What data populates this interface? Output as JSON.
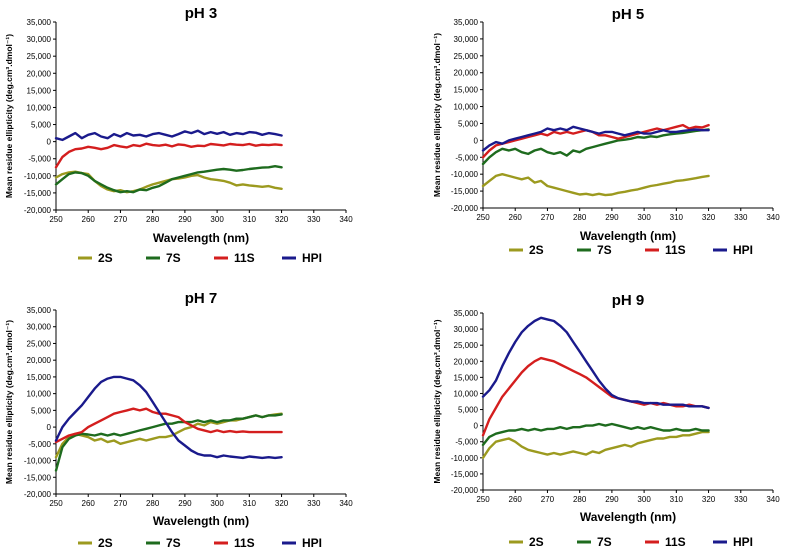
{
  "chart_data": [
    {
      "type": "line",
      "title": "pH 3",
      "xlabel": "Wavelength (nm)",
      "ylabel": "Mean residue ellipticity (deg.cm³.dmol⁻¹)",
      "xlim": [
        250,
        340
      ],
      "ylim": [
        -20000,
        35000
      ],
      "xticks": [
        "250",
        "260",
        "270",
        "280",
        "290",
        "300",
        "310",
        "320",
        "330",
        "340"
      ],
      "yticks": [
        "-20,000",
        "-15,000",
        "-10,000",
        "-5,000",
        "0",
        "5,000",
        "10,000",
        "15,000",
        "20,000",
        "25,000",
        "30,000",
        "35,000"
      ],
      "x": [
        250,
        252,
        254,
        256,
        258,
        260,
        262,
        264,
        266,
        268,
        270,
        272,
        274,
        276,
        278,
        280,
        282,
        284,
        286,
        288,
        290,
        292,
        294,
        296,
        298,
        300,
        302,
        304,
        306,
        308,
        310,
        312,
        314,
        316,
        318,
        320
      ],
      "series": [
        {
          "name": "2S",
          "color": "#9c9a1f",
          "values": [
            -10500,
            -9500,
            -9000,
            -8800,
            -9200,
            -9500,
            -11500,
            -13000,
            -14000,
            -14500,
            -14200,
            -14800,
            -14500,
            -14000,
            -13200,
            -12500,
            -12000,
            -11500,
            -11000,
            -10800,
            -10500,
            -10000,
            -9800,
            -10500,
            -11000,
            -11200,
            -11500,
            -12000,
            -12800,
            -12500,
            -12800,
            -13000,
            -13200,
            -13000,
            -13500,
            -13800
          ]
        },
        {
          "name": "7S",
          "color": "#1e6b1e",
          "values": [
            -12500,
            -11000,
            -9500,
            -9000,
            -9200,
            -10000,
            -11500,
            -12500,
            -13500,
            -14200,
            -14800,
            -14500,
            -14800,
            -14000,
            -14200,
            -13500,
            -13000,
            -12000,
            -11000,
            -10500,
            -10000,
            -9500,
            -9000,
            -8800,
            -8500,
            -8200,
            -8000,
            -8200,
            -8500,
            -8300,
            -8000,
            -7800,
            -7600,
            -7500,
            -7200,
            -7500
          ]
        },
        {
          "name": "11S",
          "color": "#d41e1e",
          "values": [
            -7500,
            -4500,
            -3000,
            -2200,
            -2000,
            -1500,
            -1800,
            -2200,
            -1800,
            -1000,
            -1400,
            -1700,
            -1000,
            -1300,
            -600,
            -1000,
            -1200,
            -900,
            -1400,
            -800,
            -1000,
            -1500,
            -1200,
            -1300,
            -700,
            -900,
            -1100,
            -700,
            -900,
            -1000,
            -700,
            -1200,
            -900,
            -1000,
            -800,
            -1000
          ]
        },
        {
          "name": "HPI",
          "color": "#1a1a8c",
          "values": [
            1000,
            500,
            1500,
            2500,
            1000,
            2000,
            2500,
            1500,
            1000,
            2200,
            1500,
            2500,
            1800,
            2000,
            1500,
            2200,
            2500,
            2000,
            1500,
            2200,
            3000,
            2500,
            3200,
            2200,
            2800,
            2300,
            2800,
            2000,
            2500,
            2200,
            2800,
            2600,
            2000,
            2500,
            2200,
            1800
          ]
        }
      ],
      "legend": [
        "2S",
        "7S",
        "11S",
        "HPI"
      ]
    },
    {
      "type": "line",
      "title": "pH 5",
      "xlabel": "Wavelength (nm)",
      "ylabel": "Mean residue ellipticity (deg.cm³.dmol⁻¹)",
      "xlim": [
        250,
        340
      ],
      "ylim": [
        -20000,
        35000
      ],
      "xticks": [
        "250",
        "260",
        "270",
        "280",
        "290",
        "300",
        "310",
        "320",
        "330",
        "340"
      ],
      "yticks": [
        "-20,000",
        "-15,000",
        "-10,000",
        "-5,000",
        "0",
        "5,000",
        "10,000",
        "15,000",
        "20,000",
        "25,000",
        "30,000",
        "35,000"
      ],
      "x": [
        250,
        252,
        254,
        256,
        258,
        260,
        262,
        264,
        266,
        268,
        270,
        272,
        274,
        276,
        278,
        280,
        282,
        284,
        286,
        288,
        290,
        292,
        294,
        296,
        298,
        300,
        302,
        304,
        306,
        308,
        310,
        312,
        314,
        316,
        318,
        320
      ],
      "series": [
        {
          "name": "2S",
          "color": "#9c9a1f",
          "values": [
            -13500,
            -12000,
            -10500,
            -10000,
            -10500,
            -11000,
            -11500,
            -11000,
            -12500,
            -12000,
            -13500,
            -14000,
            -14500,
            -15000,
            -15500,
            -16000,
            -15800,
            -16200,
            -15800,
            -16200,
            -16000,
            -15500,
            -15200,
            -14800,
            -14500,
            -14000,
            -13500,
            -13200,
            -12800,
            -12500,
            -12000,
            -11800,
            -11500,
            -11200,
            -10800,
            -10500
          ]
        },
        {
          "name": "7S",
          "color": "#1e6b1e",
          "values": [
            -7000,
            -5000,
            -3500,
            -2500,
            -3000,
            -2500,
            -3500,
            -4000,
            -3000,
            -2500,
            -3500,
            -4000,
            -3500,
            -4500,
            -3000,
            -3500,
            -2500,
            -2000,
            -1500,
            -1000,
            -500,
            0,
            200,
            500,
            1000,
            800,
            1200,
            1000,
            1500,
            1800,
            2000,
            2200,
            2500,
            2800,
            3000,
            3200
          ]
        },
        {
          "name": "11S",
          "color": "#d41e1e",
          "values": [
            -5000,
            -3000,
            -1500,
            -1000,
            -500,
            0,
            500,
            1000,
            1500,
            2000,
            1500,
            2500,
            2000,
            2500,
            2000,
            2500,
            3000,
            2500,
            1500,
            1500,
            1000,
            500,
            1000,
            1500,
            2000,
            2500,
            3000,
            3500,
            3000,
            3500,
            4000,
            4500,
            3500,
            4000,
            3800,
            4500
          ]
        },
        {
          "name": "HPI",
          "color": "#1a1a8c",
          "values": [
            -3000,
            -1500,
            -500,
            -1000,
            0,
            500,
            1000,
            1500,
            2000,
            2500,
            3500,
            3000,
            3500,
            3000,
            4000,
            3500,
            3000,
            2500,
            2000,
            2500,
            2500,
            2000,
            1500,
            2000,
            2500,
            2000,
            2000,
            2500,
            3000,
            2500,
            2500,
            2800,
            3000,
            3200,
            3000,
            3000
          ]
        }
      ],
      "legend": [
        "2S",
        "7S",
        "11S",
        "HPI"
      ]
    },
    {
      "type": "line",
      "title": "pH 7",
      "xlabel": "Wavelength (nm)",
      "ylabel": "Mean residue ellipticity (deg.cm³.dmol⁻¹)",
      "xlim": [
        250,
        340
      ],
      "ylim": [
        -20000,
        35000
      ],
      "xticks": [
        "250",
        "260",
        "270",
        "280",
        "290",
        "300",
        "310",
        "320",
        "330",
        "340"
      ],
      "yticks": [
        "-20,000",
        "-15,000",
        "-10,000",
        "-5,000",
        "0",
        "5,000",
        "10,000",
        "15,000",
        "20,000",
        "25,000",
        "30,000",
        "35,000"
      ],
      "x": [
        250,
        252,
        254,
        256,
        258,
        260,
        262,
        264,
        266,
        268,
        270,
        272,
        274,
        276,
        278,
        280,
        282,
        284,
        286,
        288,
        290,
        292,
        294,
        296,
        298,
        300,
        302,
        304,
        306,
        308,
        310,
        312,
        314,
        316,
        318,
        320
      ],
      "series": [
        {
          "name": "2S",
          "color": "#9c9a1f",
          "values": [
            -9000,
            -5000,
            -3000,
            -2000,
            -2500,
            -3000,
            -4000,
            -3500,
            -4500,
            -4000,
            -5000,
            -4500,
            -4000,
            -3500,
            -4000,
            -3500,
            -3000,
            -3000,
            -2500,
            -1500,
            -500,
            0,
            1000,
            500,
            1500,
            1000,
            1500,
            2000,
            2000,
            2500,
            3000,
            3500,
            3000,
            3500,
            3800,
            4000
          ]
        },
        {
          "name": "7S",
          "color": "#1e6b1e",
          "values": [
            -13000,
            -6000,
            -3500,
            -2500,
            -2000,
            -2200,
            -2500,
            -2000,
            -2500,
            -2000,
            -2500,
            -2000,
            -1500,
            -1000,
            -500,
            0,
            500,
            1000,
            1000,
            1500,
            1500,
            1500,
            2000,
            1500,
            2000,
            1500,
            2000,
            2000,
            2500,
            2500,
            3000,
            3500,
            3000,
            3500,
            3500,
            3800
          ]
        },
        {
          "name": "11S",
          "color": "#d41e1e",
          "values": [
            -4500,
            -3500,
            -2500,
            -2000,
            -1500,
            0,
            1000,
            2000,
            3000,
            4000,
            4500,
            5000,
            5500,
            5000,
            5500,
            4500,
            4000,
            4000,
            3500,
            3000,
            1500,
            500,
            -500,
            -1000,
            -1500,
            -1000,
            -1500,
            -1200,
            -1500,
            -1300,
            -1500,
            -1500,
            -1500,
            -1500,
            -1500,
            -1500
          ]
        },
        {
          "name": "HPI",
          "color": "#1a1a8c",
          "values": [
            -4000,
            0,
            2500,
            4500,
            6500,
            9000,
            11500,
            13500,
            14500,
            15000,
            15000,
            14500,
            14000,
            12500,
            10500,
            7500,
            4500,
            1500,
            -1500,
            -4000,
            -5500,
            -7000,
            -8000,
            -8500,
            -8500,
            -9000,
            -8500,
            -8800,
            -9000,
            -9200,
            -8800,
            -9000,
            -9200,
            -9000,
            -9200,
            -9000
          ]
        }
      ],
      "legend": [
        "2S",
        "7S",
        "11S",
        "HPI"
      ]
    },
    {
      "type": "line",
      "title": "pH 9",
      "xlabel": "Wavelength (nm)",
      "ylabel": "Mean residue ellipticity (deg.cm³.dmol⁻¹)",
      "xlim": [
        250,
        340
      ],
      "ylim": [
        -20000,
        35000
      ],
      "xticks": [
        "250",
        "260",
        "270",
        "280",
        "290",
        "300",
        "310",
        "320",
        "330",
        "340"
      ],
      "yticks": [
        "-20,000",
        "-15,000",
        "-10,000",
        "-5,000",
        "0",
        "5,000",
        "10,000",
        "15,000",
        "20,000",
        "25,000",
        "30,000",
        "35,000"
      ],
      "x": [
        250,
        252,
        254,
        256,
        258,
        260,
        262,
        264,
        266,
        268,
        270,
        272,
        274,
        276,
        278,
        280,
        282,
        284,
        286,
        288,
        290,
        292,
        294,
        296,
        298,
        300,
        302,
        304,
        306,
        308,
        310,
        312,
        314,
        316,
        318,
        320
      ],
      "series": [
        {
          "name": "2S",
          "color": "#9c9a1f",
          "values": [
            -10000,
            -7000,
            -5000,
            -4500,
            -4000,
            -5000,
            -6500,
            -7500,
            -8000,
            -8500,
            -9000,
            -8500,
            -9000,
            -8500,
            -8000,
            -8500,
            -9000,
            -8000,
            -8500,
            -7500,
            -7000,
            -6500,
            -6000,
            -6500,
            -5500,
            -5000,
            -4500,
            -4000,
            -4000,
            -3500,
            -3500,
            -3000,
            -3000,
            -2500,
            -2000,
            -2000
          ]
        },
        {
          "name": "7S",
          "color": "#1e6b1e",
          "values": [
            -6000,
            -3500,
            -2500,
            -2000,
            -1500,
            -1500,
            -1000,
            -1500,
            -1000,
            -1500,
            -1000,
            -1000,
            -500,
            -1000,
            -500,
            -500,
            0,
            0,
            500,
            0,
            500,
            0,
            -500,
            -1000,
            -500,
            -1000,
            -500,
            -1000,
            -1500,
            -1500,
            -1000,
            -1500,
            -1500,
            -1000,
            -1500,
            -1500
          ]
        },
        {
          "name": "11S",
          "color": "#d41e1e",
          "values": [
            -3000,
            2000,
            5500,
            9000,
            11500,
            14000,
            16500,
            18500,
            20000,
            21000,
            20500,
            20000,
            19000,
            18000,
            17000,
            16000,
            15000,
            13500,
            12000,
            10500,
            9000,
            8500,
            8000,
            7500,
            7000,
            6500,
            7000,
            6500,
            7000,
            6500,
            6000,
            6000,
            6500,
            6000,
            6000,
            5500
          ]
        },
        {
          "name": "HPI",
          "color": "#1a1a8c",
          "values": [
            9000,
            11000,
            14000,
            18500,
            22500,
            26000,
            29000,
            31000,
            32500,
            33500,
            33000,
            32500,
            31000,
            29000,
            26000,
            23000,
            20000,
            17000,
            14000,
            11500,
            9500,
            8500,
            8000,
            7500,
            7500,
            7000,
            7000,
            7000,
            6500,
            6500,
            6500,
            6500,
            6000,
            6000,
            6000,
            5500
          ]
        }
      ],
      "legend": [
        "2S",
        "7S",
        "11S",
        "HPI"
      ]
    }
  ]
}
